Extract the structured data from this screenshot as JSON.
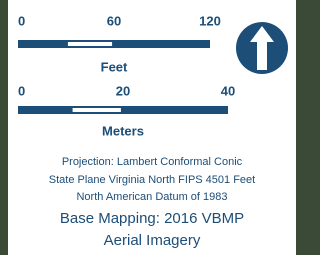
{
  "scale_bars": [
    {
      "ticks": [
        0,
        60,
        120
      ],
      "unit": "Feet"
    },
    {
      "ticks": [
        0,
        20,
        40
      ],
      "unit": "Meters"
    }
  ],
  "notes": [
    "Projection: Lambert Conformal Conic",
    "State Plane Virginia North FIPS 4501 Feet",
    "North American Datum of 1983"
  ],
  "base_mapping": [
    "Base Mapping: 2016 VBMP",
    "Aerial Imagery"
  ]
}
